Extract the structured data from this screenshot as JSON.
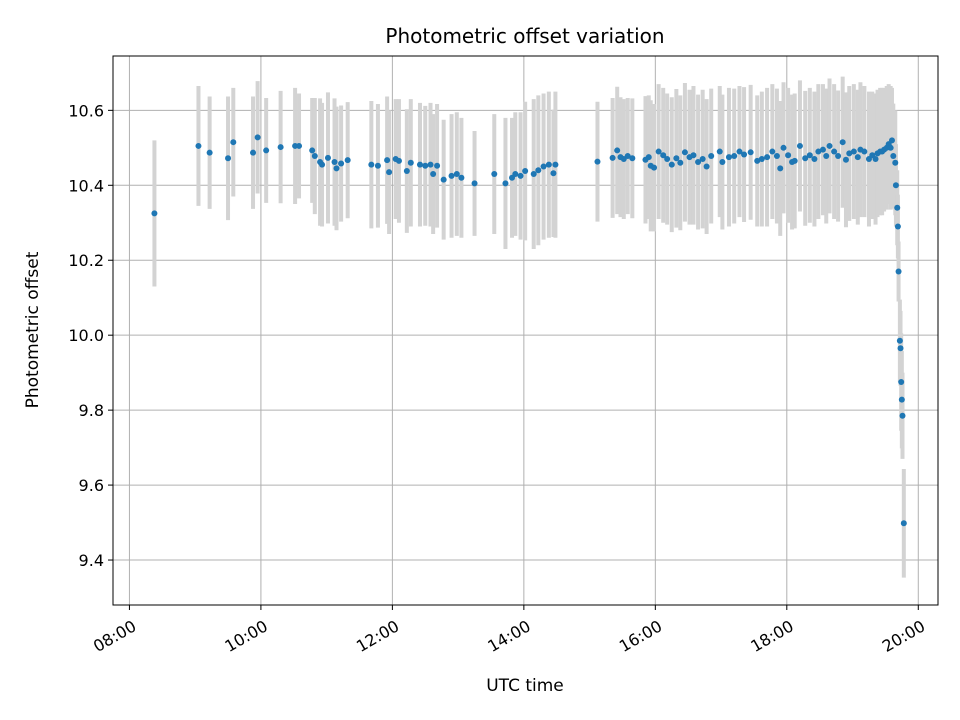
{
  "chart_data": {
    "type": "scatter",
    "title": "Photometric offset variation",
    "xlabel": "UTC time",
    "ylabel": "Photometric offset",
    "x_ticks": [
      "08:00",
      "10:00",
      "12:00",
      "14:00",
      "16:00",
      "18:00",
      "20:00"
    ],
    "y_ticks": [
      "9.4",
      "9.6",
      "9.8",
      "10.0",
      "10.2",
      "10.4",
      "10.6"
    ],
    "xlim": [
      7.75,
      20.3
    ],
    "ylim": [
      9.28,
      10.745
    ],
    "grid": true,
    "colors": {
      "point": "#1f77b4",
      "errorbar": "#d3d3d3",
      "grid": "#b0b0b0"
    },
    "points": [
      [
        8.38,
        10.325,
        0.195
      ],
      [
        9.05,
        10.505,
        0.16
      ],
      [
        9.22,
        10.487,
        0.15
      ],
      [
        9.5,
        10.472,
        0.165
      ],
      [
        9.58,
        10.515,
        0.145
      ],
      [
        9.88,
        10.487,
        0.15
      ],
      [
        9.95,
        10.528,
        0.15
      ],
      [
        10.08,
        10.493,
        0.14
      ],
      [
        10.3,
        10.502,
        0.15
      ],
      [
        10.52,
        10.505,
        0.155
      ],
      [
        10.58,
        10.505,
        0.14
      ],
      [
        10.78,
        10.493,
        0.14
      ],
      [
        10.82,
        10.478,
        0.155
      ],
      [
        10.9,
        10.462,
        0.17
      ],
      [
        10.93,
        10.455,
        0.165
      ],
      [
        11.02,
        10.473,
        0.175
      ],
      [
        11.12,
        10.462,
        0.17
      ],
      [
        11.15,
        10.445,
        0.165
      ],
      [
        11.22,
        10.458,
        0.155
      ],
      [
        11.32,
        10.467,
        0.155
      ],
      [
        11.68,
        10.455,
        0.17
      ],
      [
        11.78,
        10.452,
        0.165
      ],
      [
        11.92,
        10.467,
        0.17
      ],
      [
        11.95,
        10.435,
        0.165
      ],
      [
        12.05,
        10.47,
        0.16
      ],
      [
        12.1,
        10.465,
        0.165
      ],
      [
        12.22,
        10.438,
        0.165
      ],
      [
        12.28,
        10.46,
        0.17
      ],
      [
        12.42,
        10.455,
        0.165
      ],
      [
        12.5,
        10.452,
        0.16
      ],
      [
        12.58,
        10.455,
        0.165
      ],
      [
        12.62,
        10.43,
        0.16
      ],
      [
        12.68,
        10.452,
        0.165
      ],
      [
        12.78,
        10.415,
        0.16
      ],
      [
        12.9,
        10.425,
        0.165
      ],
      [
        12.98,
        10.43,
        0.165
      ],
      [
        13.05,
        10.42,
        0.16
      ],
      [
        13.25,
        10.405,
        0.14
      ],
      [
        13.55,
        10.43,
        0.16
      ],
      [
        13.72,
        10.405,
        0.175
      ],
      [
        13.82,
        10.42,
        0.16
      ],
      [
        13.87,
        10.43,
        0.165
      ],
      [
        13.95,
        10.425,
        0.17
      ],
      [
        14.02,
        10.438,
        0.185
      ],
      [
        14.15,
        10.43,
        0.2
      ],
      [
        14.22,
        10.44,
        0.2
      ],
      [
        14.3,
        10.45,
        0.195
      ],
      [
        14.38,
        10.455,
        0.195
      ],
      [
        14.45,
        10.432,
        0.17
      ],
      [
        14.48,
        10.455,
        0.195
      ],
      [
        15.12,
        10.463,
        0.16
      ],
      [
        15.35,
        10.473,
        0.16
      ],
      [
        15.42,
        10.493,
        0.17
      ],
      [
        15.47,
        10.475,
        0.16
      ],
      [
        15.52,
        10.47,
        0.16
      ],
      [
        15.58,
        10.478,
        0.155
      ],
      [
        15.65,
        10.472,
        0.16
      ],
      [
        15.85,
        10.468,
        0.17
      ],
      [
        15.9,
        10.475,
        0.165
      ],
      [
        15.93,
        10.452,
        0.175
      ],
      [
        15.98,
        10.447,
        0.17
      ],
      [
        16.05,
        10.49,
        0.18
      ],
      [
        16.12,
        10.48,
        0.18
      ],
      [
        16.18,
        10.47,
        0.175
      ],
      [
        16.25,
        10.455,
        0.18
      ],
      [
        16.32,
        10.472,
        0.185
      ],
      [
        16.38,
        10.46,
        0.18
      ],
      [
        16.45,
        10.488,
        0.185
      ],
      [
        16.52,
        10.475,
        0.18
      ],
      [
        16.58,
        10.48,
        0.185
      ],
      [
        16.65,
        10.462,
        0.18
      ],
      [
        16.72,
        10.47,
        0.185
      ],
      [
        16.78,
        10.45,
        0.18
      ],
      [
        16.85,
        10.478,
        0.18
      ],
      [
        16.98,
        10.49,
        0.175
      ],
      [
        17.02,
        10.462,
        0.18
      ],
      [
        17.12,
        10.475,
        0.185
      ],
      [
        17.2,
        10.478,
        0.18
      ],
      [
        17.28,
        10.49,
        0.175
      ],
      [
        17.35,
        10.482,
        0.18
      ],
      [
        17.45,
        10.488,
        0.18
      ],
      [
        17.55,
        10.465,
        0.175
      ],
      [
        17.62,
        10.47,
        0.18
      ],
      [
        17.7,
        10.475,
        0.185
      ],
      [
        17.78,
        10.49,
        0.18
      ],
      [
        17.85,
        10.478,
        0.18
      ],
      [
        17.9,
        10.445,
        0.18
      ],
      [
        17.95,
        10.5,
        0.175
      ],
      [
        18.02,
        10.48,
        0.18
      ],
      [
        18.08,
        10.462,
        0.18
      ],
      [
        18.12,
        10.465,
        0.18
      ],
      [
        18.2,
        10.505,
        0.175
      ],
      [
        18.28,
        10.472,
        0.18
      ],
      [
        18.35,
        10.48,
        0.18
      ],
      [
        18.42,
        10.47,
        0.18
      ],
      [
        18.48,
        10.49,
        0.18
      ],
      [
        18.55,
        10.495,
        0.175
      ],
      [
        18.6,
        10.478,
        0.18
      ],
      [
        18.65,
        10.505,
        0.18
      ],
      [
        18.72,
        10.49,
        0.18
      ],
      [
        18.78,
        10.478,
        0.175
      ],
      [
        18.85,
        10.515,
        0.175
      ],
      [
        18.9,
        10.468,
        0.18
      ],
      [
        18.95,
        10.485,
        0.18
      ],
      [
        19.02,
        10.49,
        0.18
      ],
      [
        19.08,
        10.475,
        0.18
      ],
      [
        19.12,
        10.495,
        0.18
      ],
      [
        19.18,
        10.49,
        0.175
      ],
      [
        19.25,
        10.47,
        0.18
      ],
      [
        19.3,
        10.48,
        0.17
      ],
      [
        19.35,
        10.47,
        0.175
      ],
      [
        19.38,
        10.485,
        0.17
      ],
      [
        19.42,
        10.49,
        0.17
      ],
      [
        19.45,
        10.49,
        0.17
      ],
      [
        19.48,
        10.495,
        0.165
      ],
      [
        19.52,
        10.5,
        0.165
      ],
      [
        19.55,
        10.51,
        0.16
      ],
      [
        19.58,
        10.5,
        0.165
      ],
      [
        19.6,
        10.52,
        0.14
      ],
      [
        19.62,
        10.478,
        0.14
      ],
      [
        19.65,
        10.46,
        0.14
      ],
      [
        19.66,
        10.4,
        0.11
      ],
      [
        19.68,
        10.34,
        0.1
      ],
      [
        19.69,
        10.29,
        0.085
      ],
      [
        19.7,
        10.17,
        0.08
      ],
      [
        19.72,
        9.985,
        0.11
      ],
      [
        19.73,
        9.965,
        0.1
      ],
      [
        19.74,
        9.875,
        0.13
      ],
      [
        19.75,
        9.828,
        0.13
      ],
      [
        19.76,
        9.785,
        0.115
      ],
      [
        19.78,
        9.498,
        0.145
      ]
    ]
  }
}
